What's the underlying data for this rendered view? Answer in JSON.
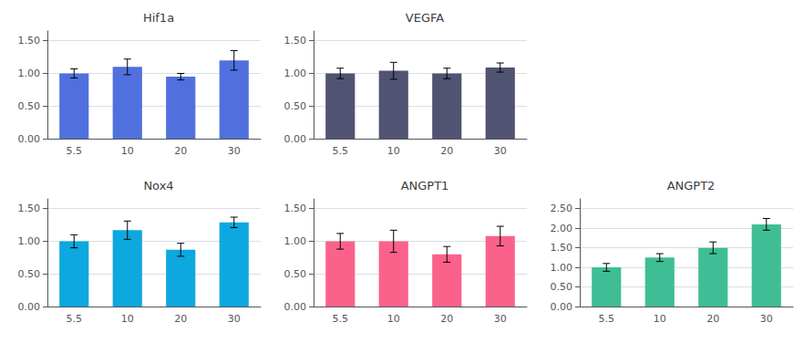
{
  "chart_data": [
    {
      "type": "bar",
      "title": "Hif1a",
      "categories": [
        "5.5",
        "10",
        "20",
        "30"
      ],
      "values": [
        1.0,
        1.1,
        0.95,
        1.2
      ],
      "errors": [
        0.07,
        0.12,
        0.05,
        0.15
      ],
      "ylim": [
        0,
        1.65
      ],
      "yticks": [
        {
          "value": 0.0,
          "label": "0.00"
        },
        {
          "value": 0.5,
          "label": "0.50"
        },
        {
          "value": 1.0,
          "label": "1.00"
        },
        {
          "value": 1.5,
          "label": "1.50"
        }
      ],
      "grid": true
    },
    {
      "type": "bar",
      "title": "VEGFA",
      "categories": [
        "5.5",
        "10",
        "20",
        "30"
      ],
      "values": [
        1.0,
        1.04,
        1.0,
        1.09
      ],
      "errors": [
        0.08,
        0.13,
        0.08,
        0.07
      ],
      "ylim": [
        0,
        1.65
      ],
      "yticks": [
        {
          "value": 0.0,
          "label": "0.00"
        },
        {
          "value": 0.5,
          "label": "0.50"
        },
        {
          "value": 1.0,
          "label": "1.00"
        },
        {
          "value": 1.5,
          "label": "1.50"
        }
      ],
      "grid": true
    },
    {
      "type": "bar",
      "title": "Nox4",
      "categories": [
        "5.5",
        "10",
        "20",
        "30"
      ],
      "values": [
        1.0,
        1.17,
        0.87,
        1.29
      ],
      "errors": [
        0.1,
        0.14,
        0.1,
        0.08
      ],
      "ylim": [
        0,
        1.65
      ],
      "yticks": [
        {
          "value": 0.0,
          "label": "0.00"
        },
        {
          "value": 0.5,
          "label": "0.50"
        },
        {
          "value": 1.0,
          "label": "1.00"
        },
        {
          "value": 1.5,
          "label": "1.50"
        }
      ],
      "grid": true
    },
    {
      "type": "bar",
      "title": "ANGPT1",
      "categories": [
        "5.5",
        "10",
        "20",
        "30"
      ],
      "values": [
        1.0,
        1.0,
        0.8,
        1.08
      ],
      "errors": [
        0.12,
        0.17,
        0.12,
        0.15
      ],
      "ylim": [
        0,
        1.65
      ],
      "yticks": [
        {
          "value": 0.0,
          "label": "0.00"
        },
        {
          "value": 0.5,
          "label": "0.50"
        },
        {
          "value": 1.0,
          "label": "1.00"
        },
        {
          "value": 1.5,
          "label": "1.50"
        }
      ],
      "grid": true
    },
    {
      "type": "bar",
      "title": "ANGPT2",
      "categories": [
        "5.5",
        "10",
        "20",
        "30"
      ],
      "values": [
        1.0,
        1.25,
        1.5,
        2.1
      ],
      "errors": [
        0.1,
        0.1,
        0.15,
        0.15
      ],
      "ylim": [
        0,
        2.75
      ],
      "yticks": [
        {
          "value": 0.0,
          "label": "0.00"
        },
        {
          "value": 0.5,
          "label": "0.50"
        },
        {
          "value": 1.0,
          "label": "1.00"
        },
        {
          "value": 1.5,
          "label": "1.50"
        },
        {
          "value": 2.0,
          "label": "2.00"
        },
        {
          "value": 2.5,
          "label": "2.50"
        }
      ],
      "grid": true
    }
  ]
}
